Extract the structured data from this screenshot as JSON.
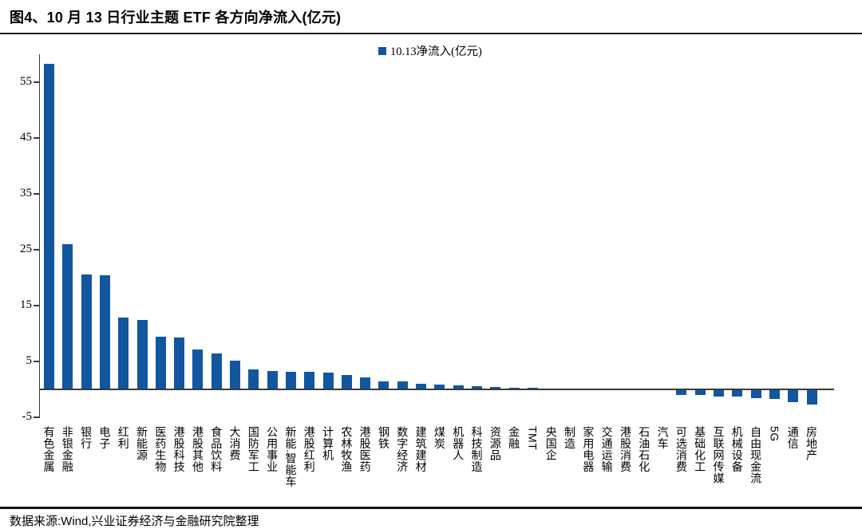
{
  "figure": {
    "title": "图4、10 月 13 日行业主题 ETF 各方向净流入(亿元)",
    "source": "数据来源:Wind,兴业证券经济与金融研究院整理"
  },
  "colors": {
    "bar": "#1256A0",
    "axis": "#3a3a3a",
    "text": "#000000"
  },
  "chart_data": {
    "type": "bar",
    "title": "10 月 13 日行业主题 ETF 各方向净流入(亿元)",
    "legend": [
      "10.13净流入(亿元)"
    ],
    "legend_position": "top-center",
    "categories": [
      "有色金属",
      "非银金融",
      "银行",
      "电子",
      "红利",
      "新能源",
      "医药生物",
      "港股科技",
      "港股其他",
      "食品饮料",
      "大消费",
      "国防军工",
      "公用事业",
      "新能.智能车",
      "港股红利",
      "计算机",
      "农林牧渔",
      "港股医药",
      "钢铁",
      "数字经济",
      "建筑建材",
      "煤炭",
      "机器人",
      "科技制造",
      "资源品",
      "金融",
      "TMT",
      "央国企",
      "制造",
      "家用电器",
      "交通运输",
      "港股消费",
      "石油石化",
      "汽车",
      "可选消费",
      "基础化工",
      "互联网传媒",
      "机械设备",
      "自由现金流",
      "5G",
      "通信",
      "房地产"
    ],
    "values": [
      58.3,
      26.0,
      20.6,
      20.5,
      12.8,
      12.4,
      9.5,
      9.3,
      7.2,
      6.4,
      5.1,
      3.6,
      3.3,
      3.2,
      3.1,
      3.0,
      2.6,
      2.2,
      1.5,
      1.4,
      1.0,
      0.9,
      0.7,
      0.6,
      0.4,
      0.3,
      0.3,
      0.2,
      0.1,
      0.1,
      0.1,
      0.0,
      0.0,
      0.0,
      -0.8,
      -0.8,
      -1.1,
      -1.1,
      -1.4,
      -1.5,
      -2.1,
      -2.5
    ],
    "xlabel": "",
    "ylabel": "",
    "ylim": [
      -5,
      60
    ],
    "yticks": [
      55,
      45,
      35,
      25,
      15,
      5,
      -5
    ],
    "grid": false
  }
}
